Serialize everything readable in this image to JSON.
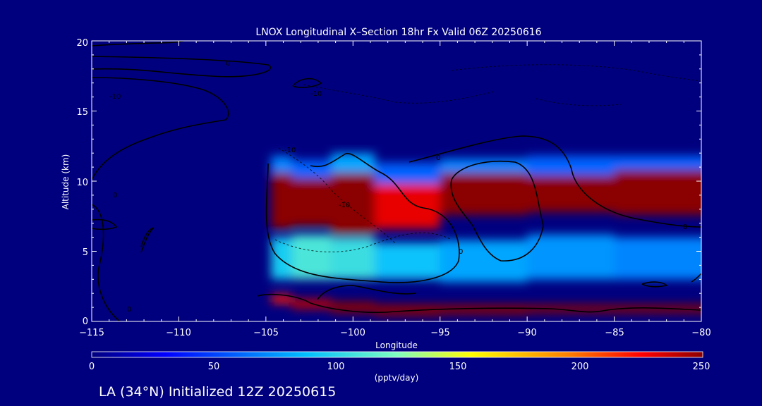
{
  "chart_data": {
    "type": "heatmap",
    "title": "LNOX Longitudinal X–Section 18hr  Fx Valid 06Z 20250616",
    "xlabel": "Longitude",
    "ylabel": "Altitude (km)",
    "xlim": [
      -115,
      -80
    ],
    "ylim": [
      0,
      20
    ],
    "x_ticks": [
      "−115",
      "−110",
      "−105",
      "−100",
      "−95",
      "−90",
      "−85",
      "−80"
    ],
    "y_ticks": [
      "0",
      "5",
      "10",
      "15",
      "20"
    ],
    "colorbar": {
      "label": "(pptv/day)",
      "min": 0,
      "max": 250,
      "ticks": [
        "0",
        "50",
        "100",
        "150",
        "200",
        "250"
      ]
    },
    "footer": "LA (34°N) Initialized 12Z 20250615",
    "contour_labels": [
      "0",
      "-10",
      "-10",
      "0",
      "-10",
      "-10",
      "0",
      "0",
      "0",
      "0"
    ],
    "columns": [
      {
        "x": -104.5,
        "bands": [
          {
            "y0": 1.3,
            "y1": 1.9,
            "v": 220
          },
          {
            "y0": 3.0,
            "y1": 6.0,
            "v": 95
          },
          {
            "y0": 6.6,
            "y1": 10.6,
            "v": 250
          },
          {
            "y0": 10.6,
            "y1": 11.8,
            "v": 70
          }
        ]
      },
      {
        "x": -102.5,
        "bands": [
          {
            "y0": 0.9,
            "y1": 1.6,
            "v": 240
          },
          {
            "y0": 3.0,
            "y1": 6.2,
            "v": 110
          },
          {
            "y0": 6.8,
            "y1": 10.2,
            "v": 250
          },
          {
            "y0": 10.2,
            "y1": 11.5,
            "v": 60
          }
        ]
      },
      {
        "x": -100.0,
        "bands": [
          {
            "y0": 0.6,
            "y1": 1.4,
            "v": 250
          },
          {
            "y0": 3.0,
            "y1": 6.0,
            "v": 105
          },
          {
            "y0": 6.2,
            "y1": 10.6,
            "v": 250
          },
          {
            "y0": 10.6,
            "y1": 12.0,
            "v": 80
          }
        ]
      },
      {
        "x": -97.5,
        "bands": [
          {
            "y0": 0.4,
            "y1": 1.2,
            "v": 250
          },
          {
            "y0": 3.0,
            "y1": 5.6,
            "v": 90
          },
          {
            "y0": 6.6,
            "y1": 9.8,
            "v": 230
          },
          {
            "y0": 9.8,
            "y1": 11.3,
            "v": 60
          }
        ]
      },
      {
        "x": -92.5,
        "bands": [
          {
            "y0": 0.5,
            "y1": 1.2,
            "v": 250
          },
          {
            "y0": 2.8,
            "y1": 5.8,
            "v": 80
          },
          {
            "y0": 7.6,
            "y1": 10.6,
            "v": 250
          },
          {
            "y0": 10.6,
            "y1": 11.6,
            "v": 70
          }
        ]
      },
      {
        "x": -87.5,
        "bands": [
          {
            "y0": 0.6,
            "y1": 1.2,
            "v": 250
          },
          {
            "y0": 3.0,
            "y1": 6.2,
            "v": 75
          },
          {
            "y0": 7.8,
            "y1": 10.4,
            "v": 250
          },
          {
            "y0": 10.4,
            "y1": 11.8,
            "v": 60
          }
        ]
      },
      {
        "x": -82.5,
        "bands": [
          {
            "y0": 0.6,
            "y1": 1.2,
            "v": 250
          },
          {
            "y0": 3.0,
            "y1": 6.0,
            "v": 70
          },
          {
            "y0": 7.6,
            "y1": 10.8,
            "v": 250
          },
          {
            "y0": 10.8,
            "y1": 11.8,
            "v": 60
          }
        ]
      }
    ]
  }
}
